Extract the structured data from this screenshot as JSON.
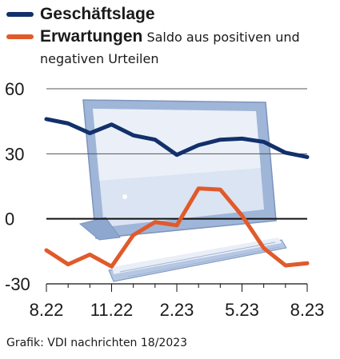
{
  "chart_data": {
    "type": "line",
    "title": "",
    "subtitle": "Saldo aus positiven und negativen Urteilen",
    "xlabel": "",
    "ylabel": "",
    "ylim": [
      -30,
      60
    ],
    "yticks": [
      60,
      30,
      0,
      -30
    ],
    "x": [
      "8.22",
      "9.22",
      "10.22",
      "11.22",
      "12.22",
      "1.23",
      "2.23",
      "3.23",
      "4.23",
      "5.23",
      "6.23",
      "7.23",
      "8.23"
    ],
    "xtick_labels": [
      "8.22",
      "11.22",
      "2.23",
      "5.23",
      "8.23"
    ],
    "grid": true,
    "legend_position": "top-left",
    "series": [
      {
        "name": "Geschäftslage",
        "color": "#12306b",
        "values": [
          46,
          44,
          39.5,
          43.5,
          38.5,
          36.5,
          29.5,
          34,
          36.5,
          37,
          35.5,
          30.5,
          28.5
        ]
      },
      {
        "name": "Erwartungen",
        "color": "#e05a2b",
        "values": [
          -14.5,
          -21,
          -16.5,
          -22,
          -7.5,
          -1.5,
          -3,
          14,
          13.5,
          1.5,
          -13.5,
          -21.5,
          -20.5
        ]
      }
    ]
  },
  "legend": {
    "subtitle_text": "Saldo aus positiven und",
    "subtitle_text_2": "negativen Urteilen"
  },
  "source": "Grafik: VDI nachrichten 18/2023"
}
